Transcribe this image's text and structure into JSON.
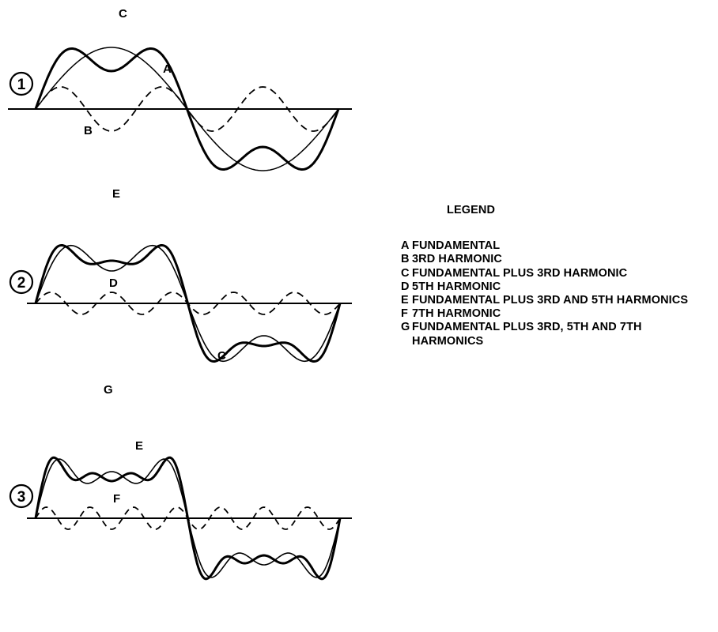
{
  "panels": [
    {
      "number": "1",
      "curve_labels": {
        "sum": "C",
        "fundamental": "A",
        "harmonic": "B"
      }
    },
    {
      "number": "2",
      "curve_labels": {
        "sum_top": "E",
        "harmonic": "D",
        "previous_sum": "C"
      }
    },
    {
      "number": "3",
      "curve_labels": {
        "sum_top": "G",
        "previous_sum": "E",
        "harmonic": "F"
      }
    }
  ],
  "legend": {
    "title": "LEGEND",
    "items": [
      {
        "key": "A",
        "text": "FUNDAMENTAL"
      },
      {
        "key": "B",
        "text": "3RD HARMONIC"
      },
      {
        "key": "C",
        "text": "FUNDAMENTAL PLUS 3RD HARMONIC"
      },
      {
        "key": "D",
        "text": "5TH HARMONIC"
      },
      {
        "key": "E",
        "text": "FUNDAMENTAL PLUS 3RD AND 5TH HARMONICS"
      },
      {
        "key": "F",
        "text": "7TH HARMONIC"
      },
      {
        "key": "G",
        "text": "FUNDAMENTAL PLUS 3RD, 5TH AND 7TH HARMONICS"
      }
    ]
  }
}
